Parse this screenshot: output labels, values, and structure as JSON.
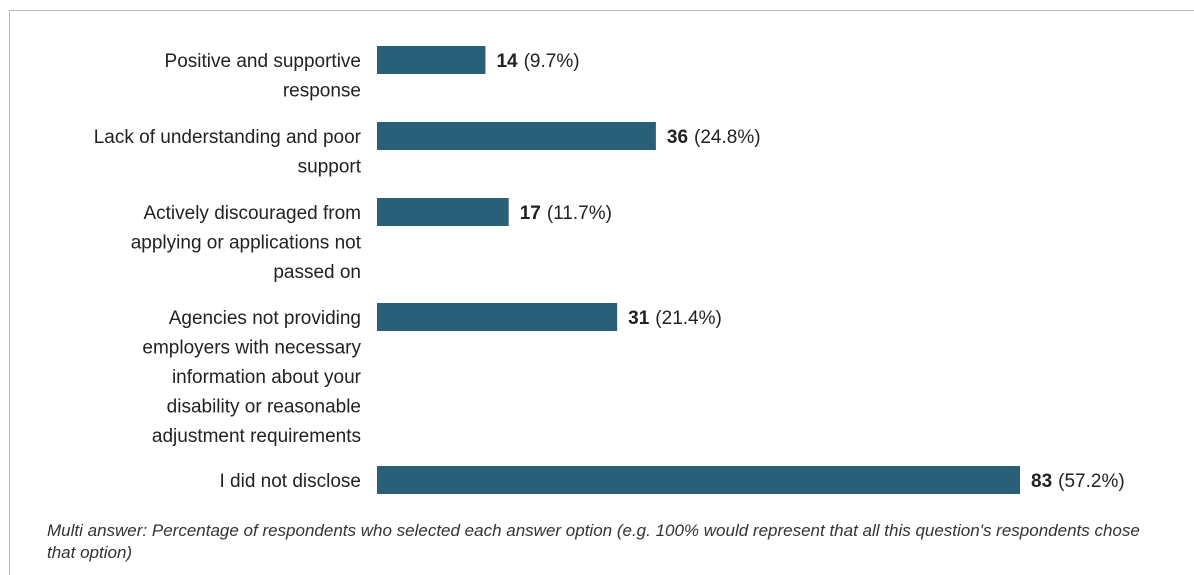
{
  "chart_data": {
    "type": "bar",
    "orientation": "horizontal",
    "categories": [
      [
        "Positive and supportive",
        "response"
      ],
      [
        "Lack of understanding and poor",
        "support"
      ],
      [
        "Actively discouraged from",
        "applying or applications not",
        "passed on"
      ],
      [
        "Agencies not providing",
        "employers with necessary",
        "information about your",
        "disability or reasonable",
        "adjustment requirements"
      ],
      [
        "I did not disclose"
      ]
    ],
    "values": [
      14,
      36,
      17,
      31,
      83
    ],
    "percent_labels": [
      "(9.7%)",
      "(24.8%)",
      "(11.7%)",
      "(21.4%)",
      "(57.2%)"
    ],
    "xlim": [
      0,
      83
    ],
    "bar_color": "#2a5f7a",
    "grid": false,
    "legend": "none"
  },
  "footnote": "Multi answer: Percentage of respondents who selected each answer option (e.g. 100% would represent that all this question's respondents chose that option)"
}
